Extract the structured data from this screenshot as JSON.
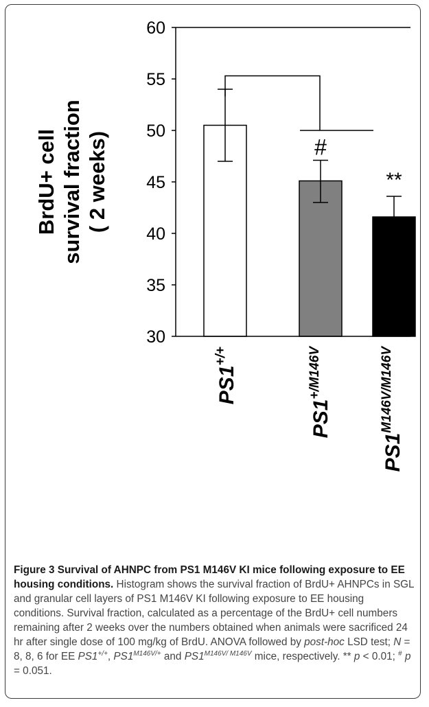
{
  "chart_data": {
    "type": "bar",
    "ylabel_lines": [
      "BrdU+ cell",
      "survival fraction",
      "( 2 weeks)"
    ],
    "ylim": [
      30,
      60
    ],
    "yticks": [
      30,
      35,
      40,
      45,
      50,
      55,
      60
    ],
    "categories": [
      {
        "base": "PS1",
        "sup": "+/+"
      },
      {
        "base": "PS1",
        "sup": "+/M146V"
      },
      {
        "base": "PS1",
        "sup": "M146V/M146V"
      }
    ],
    "values": [
      50.5,
      45.1,
      41.6
    ],
    "error_high": [
      54.0,
      47.1,
      43.6
    ],
    "error_low": [
      47.0,
      43.0,
      39.6
    ],
    "bar_colors": [
      "#ffffff",
      "#808080",
      "#000000"
    ],
    "annotations": [
      "#",
      "**"
    ]
  },
  "caption": {
    "title": "Figure 3 Survival of AHNPC from PS1 M146V KI mice following exposure to EE housing conditions.",
    "sentence1": " Histogram shows the survival fraction of BrdU+ AHNPCs in SGL and granular cell layers of PS1 M146V KI following exposure to EE housing conditions. Survival fraction, calculated as a percentage of the BrdU+ cell numbers remaining after 2 weeks over the numbers obtained when animals were sacrificed 24 hr after single dose of 100 mg/kg of BrdU. ANOVA followed by ",
    "posthoc": "post-hoc",
    "s2": " LSD test; ",
    "n_label": "N",
    "s3": " = 8, 8, 6 for EE ",
    "g1_base": "PS1",
    "g1_sup": "+/+",
    "s4": ", ",
    "g2_base": "PS1",
    "g2_sup": "M146V/+",
    "s5": " and ",
    "g3_base": "PS1",
    "g3_sup": "M146V/ M146V",
    "s6": " mice, respectively. ** ",
    "p1": "p",
    "s7": " < 0.01; ",
    "hash_sup": "#",
    "s8": " ",
    "p2": "p",
    "s9": " = 0.051."
  }
}
